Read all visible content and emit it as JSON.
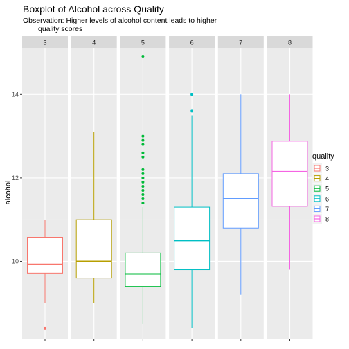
{
  "chart_data": {
    "type": "boxplot",
    "title": "Boxplot of Alcohol across Quality",
    "subtitle_lines": [
      "Observation: Higher levels of alcohol content leads to higher",
      "quality scores"
    ],
    "ylabel": "alcohol",
    "xlabel": "",
    "ylim": [
      8.15,
      15.1
    ],
    "yticks": [
      10,
      12,
      14
    ],
    "grid": true,
    "facet_by": "quality",
    "legend": {
      "title": "quality",
      "position": "right"
    },
    "panels": [
      {
        "label": "3",
        "color": "#F8766D",
        "min": 9.0,
        "q1": 9.72,
        "median": 9.93,
        "q3": 10.58,
        "max": 11.0,
        "outliers": [
          8.4
        ]
      },
      {
        "label": "4",
        "color": "#B79F00",
        "min": 9.0,
        "q1": 9.6,
        "median": 10.0,
        "q3": 11.0,
        "max": 13.1,
        "outliers": []
      },
      {
        "label": "5",
        "color": "#00BA38",
        "min": 8.5,
        "q1": 9.4,
        "median": 9.7,
        "q3": 10.2,
        "max": 11.3,
        "outliers": [
          11.4,
          11.5,
          11.6,
          11.7,
          11.8,
          11.9,
          12.0,
          12.1,
          12.2,
          12.5,
          12.6,
          12.8,
          12.9,
          13.0,
          14.9
        ]
      },
      {
        "label": "6",
        "color": "#00BFC4",
        "min": 8.4,
        "q1": 9.8,
        "median": 10.5,
        "q3": 11.3,
        "max": 13.5,
        "outliers": [
          13.6,
          14.0
        ]
      },
      {
        "label": "7",
        "color": "#619CFF",
        "min": 9.2,
        "q1": 10.8,
        "median": 11.5,
        "q3": 12.1,
        "max": 14.0,
        "outliers": []
      },
      {
        "label": "8",
        "color": "#F564E3",
        "min": 9.8,
        "q1": 11.32,
        "median": 12.15,
        "q3": 12.88,
        "max": 14.0,
        "outliers": []
      }
    ]
  }
}
